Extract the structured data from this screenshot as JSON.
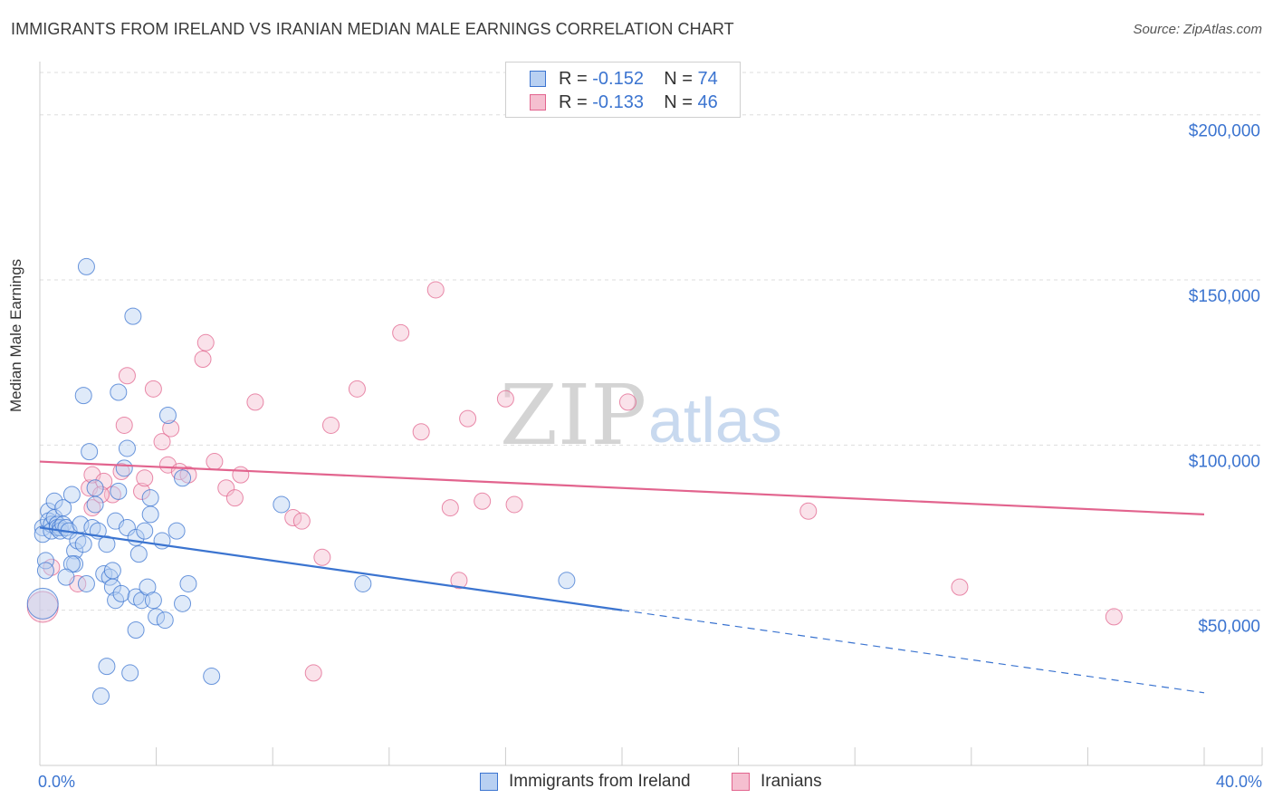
{
  "header": {
    "title": "IMMIGRANTS FROM IRELAND VS IRANIAN MEDIAN MALE EARNINGS CORRELATION CHART",
    "source": "Source: ZipAtlas.com"
  },
  "legend": {
    "row1": {
      "r_label": "R = ",
      "r_value": "-0.152",
      "n_label": "N = ",
      "n_value": "74"
    },
    "row2": {
      "r_label": "R = ",
      "r_value": "-0.133",
      "n_label": "N = ",
      "n_value": "46"
    }
  },
  "watermark": {
    "zip": "ZIP",
    "atlas": "atlas"
  },
  "colors": {
    "blue": "#3b74d0",
    "blue_fill": "#b8d0f2",
    "pink": "#e2648e",
    "pink_fill": "#f5bfd0",
    "grid": "#dddddd"
  },
  "chart_data": {
    "type": "scatter",
    "title": "IMMIGRANTS FROM IRELAND VS IRANIAN MEDIAN MALE EARNINGS CORRELATION CHART",
    "xlabel": "",
    "ylabel": "Median Male Earnings",
    "xlim": [
      0,
      40
    ],
    "ylim": [
      3000,
      215000
    ],
    "x_tick_labels": [
      {
        "value": 0,
        "label": "0.0%"
      },
      {
        "value": 40,
        "label": "40.0%"
      }
    ],
    "y_ticks": [
      {
        "value": 50000,
        "label": "$50,000"
      },
      {
        "value": 100000,
        "label": "$100,000"
      },
      {
        "value": 150000,
        "label": "$150,000"
      },
      {
        "value": 200000,
        "label": "$200,000"
      }
    ],
    "series": [
      {
        "name": "Immigrants from Ireland",
        "color": "#3b74d0",
        "trend": {
          "x0": 0,
          "y0": 75000,
          "x1": 20,
          "y1": 50000,
          "dash_to_x": 40,
          "dash_to_y": 25000
        },
        "points": [
          [
            0.1,
            75000
          ],
          [
            0.1,
            73000
          ],
          [
            0.2,
            65000
          ],
          [
            0.2,
            62000
          ],
          [
            0.3,
            80000
          ],
          [
            0.3,
            77000
          ],
          [
            0.4,
            76000
          ],
          [
            0.4,
            74000
          ],
          [
            0.5,
            83000
          ],
          [
            0.5,
            78000
          ],
          [
            0.6,
            76000
          ],
          [
            0.6,
            75000
          ],
          [
            0.7,
            75000
          ],
          [
            0.7,
            74000
          ],
          [
            0.8,
            81000
          ],
          [
            0.8,
            76000
          ],
          [
            0.9,
            75000
          ],
          [
            1.0,
            74000
          ],
          [
            1.1,
            85000
          ],
          [
            1.2,
            68000
          ],
          [
            1.2,
            64000
          ],
          [
            1.3,
            71000
          ],
          [
            1.4,
            76000
          ],
          [
            1.5,
            70000
          ],
          [
            1.6,
            58000
          ],
          [
            1.7,
            98000
          ],
          [
            1.8,
            75000
          ],
          [
            1.9,
            82000
          ],
          [
            1.9,
            87000
          ],
          [
            2.0,
            74000
          ],
          [
            2.2,
            61000
          ],
          [
            2.3,
            70000
          ],
          [
            2.4,
            60000
          ],
          [
            2.5,
            57000
          ],
          [
            2.5,
            62000
          ],
          [
            2.6,
            53000
          ],
          [
            2.6,
            77000
          ],
          [
            2.7,
            86000
          ],
          [
            2.8,
            55000
          ],
          [
            2.9,
            93000
          ],
          [
            3.0,
            99000
          ],
          [
            3.0,
            75000
          ],
          [
            3.1,
            31000
          ],
          [
            3.3,
            54000
          ],
          [
            3.3,
            72000
          ],
          [
            3.4,
            67000
          ],
          [
            3.5,
            53000
          ],
          [
            3.6,
            74000
          ],
          [
            3.7,
            57000
          ],
          [
            3.8,
            79000
          ],
          [
            3.8,
            84000
          ],
          [
            3.9,
            53000
          ],
          [
            4.0,
            48000
          ],
          [
            4.2,
            71000
          ],
          [
            4.3,
            47000
          ],
          [
            4.4,
            109000
          ],
          [
            4.7,
            74000
          ],
          [
            4.9,
            90000
          ],
          [
            4.9,
            52000
          ],
          [
            5.1,
            58000
          ],
          [
            5.9,
            30000
          ],
          [
            8.3,
            82000
          ],
          [
            11.1,
            58000
          ],
          [
            18.1,
            59000
          ],
          [
            1.6,
            154000
          ],
          [
            3.2,
            139000
          ],
          [
            1.5,
            115000
          ],
          [
            2.7,
            116000
          ],
          [
            2.1,
            24000
          ],
          [
            2.3,
            33000
          ],
          [
            3.3,
            44000
          ],
          [
            1.1,
            64000
          ],
          [
            0.9,
            60000
          ],
          [
            0.1,
            52000
          ]
        ]
      },
      {
        "name": "Iranians",
        "color": "#e2648e",
        "trend": {
          "x0": 0,
          "y0": 95000,
          "x1": 40,
          "y1": 79000
        },
        "points": [
          [
            0.1,
            51000
          ],
          [
            0.4,
            63000
          ],
          [
            1.3,
            58000
          ],
          [
            1.7,
            87000
          ],
          [
            1.8,
            81000
          ],
          [
            1.8,
            91000
          ],
          [
            2.2,
            89000
          ],
          [
            2.5,
            85000
          ],
          [
            2.8,
            92000
          ],
          [
            2.9,
            106000
          ],
          [
            3.0,
            121000
          ],
          [
            3.5,
            86000
          ],
          [
            3.6,
            90000
          ],
          [
            3.9,
            117000
          ],
          [
            4.2,
            101000
          ],
          [
            4.4,
            94000
          ],
          [
            4.5,
            105000
          ],
          [
            4.8,
            92000
          ],
          [
            5.1,
            91000
          ],
          [
            5.6,
            126000
          ],
          [
            5.7,
            131000
          ],
          [
            6.0,
            95000
          ],
          [
            6.4,
            87000
          ],
          [
            6.7,
            84000
          ],
          [
            6.9,
            91000
          ],
          [
            7.4,
            113000
          ],
          [
            8.7,
            78000
          ],
          [
            9.0,
            77000
          ],
          [
            9.4,
            31000
          ],
          [
            9.7,
            66000
          ],
          [
            10.0,
            106000
          ],
          [
            10.9,
            117000
          ],
          [
            12.4,
            134000
          ],
          [
            13.1,
            104000
          ],
          [
            13.6,
            147000
          ],
          [
            14.1,
            81000
          ],
          [
            14.4,
            59000
          ],
          [
            14.7,
            108000
          ],
          [
            15.2,
            83000
          ],
          [
            16.0,
            114000
          ],
          [
            16.3,
            82000
          ],
          [
            20.2,
            113000
          ],
          [
            26.4,
            80000
          ],
          [
            31.6,
            57000
          ],
          [
            36.9,
            48000
          ],
          [
            2.1,
            85000
          ]
        ]
      }
    ]
  },
  "bottom_legend": {
    "series1_label": "Immigrants from Ireland",
    "series2_label": "Iranians"
  }
}
